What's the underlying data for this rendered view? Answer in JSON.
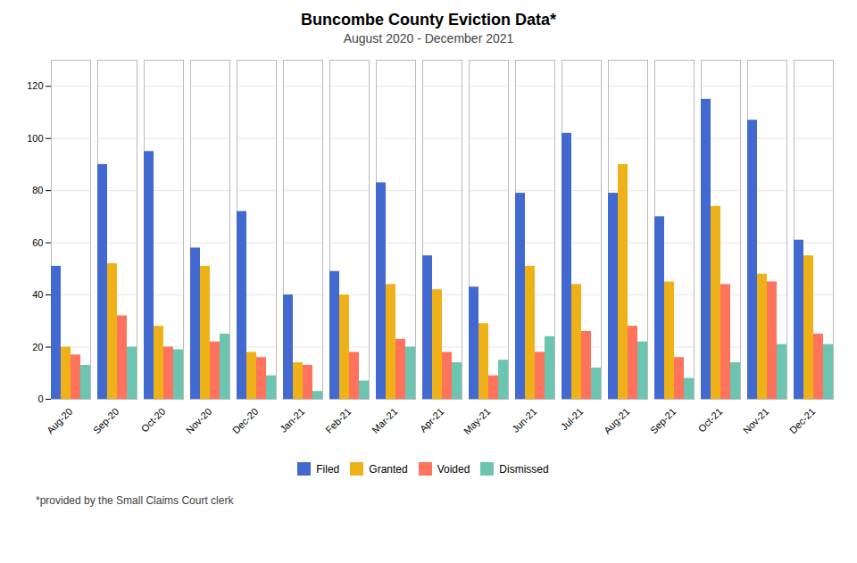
{
  "chart_data": {
    "type": "bar",
    "title": "Buncombe County Eviction Data*",
    "subtitle": "August 2020 - December 2021",
    "annotations": [
      "*provided by the Small Claims Court clerk"
    ],
    "categories": [
      "Aug-20",
      "Sep-20",
      "Oct-20",
      "Nov-20",
      "Dec-20",
      "Jan-21",
      "Feb-21",
      "Mar-21",
      "Apr-21",
      "May-21",
      "Jun-21",
      "Jul-21",
      "Aug-21",
      "Sep-21",
      "Oct-21",
      "Nov-21",
      "Dec-21"
    ],
    "series": [
      {
        "name": "Filed",
        "values": [
          51,
          90,
          95,
          58,
          72,
          40,
          49,
          83,
          55,
          43,
          79,
          102,
          79,
          70,
          115,
          107,
          61
        ]
      },
      {
        "name": "Granted",
        "values": [
          20,
          52,
          28,
          51,
          18,
          14,
          40,
          44,
          42,
          29,
          51,
          44,
          90,
          45,
          74,
          48,
          55
        ]
      },
      {
        "name": "Voided",
        "values": [
          17,
          32,
          20,
          22,
          16,
          13,
          18,
          23,
          18,
          9,
          18,
          26,
          28,
          16,
          44,
          45,
          25
        ]
      },
      {
        "name": "Dismissed",
        "values": [
          13,
          20,
          19,
          25,
          9,
          3,
          7,
          20,
          14,
          15,
          24,
          12,
          22,
          8,
          14,
          21,
          21
        ]
      }
    ],
    "ylim": [
      0,
      130
    ],
    "yticks": [
      0,
      20,
      40,
      60,
      80,
      100,
      120
    ],
    "grid": true,
    "legend": "bottom"
  }
}
